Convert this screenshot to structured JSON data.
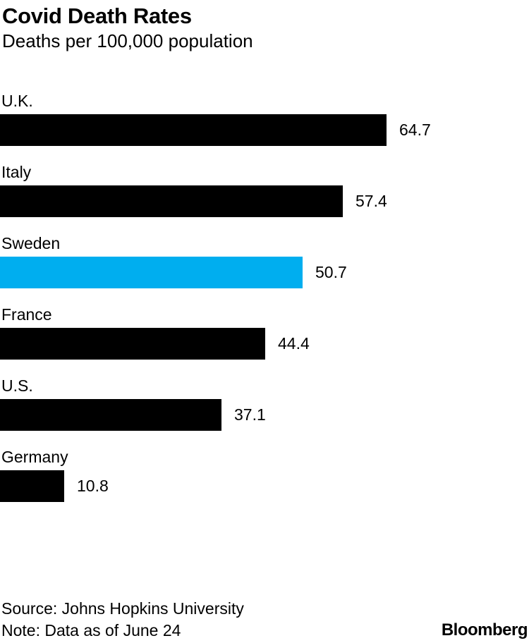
{
  "header": {
    "title": "Covid Death Rates",
    "subtitle": "Deaths per 100,000 population"
  },
  "chart_data": {
    "type": "bar",
    "orientation": "horizontal",
    "title": "Covid Death Rates",
    "subtitle": "Deaths per 100,000 population",
    "categories": [
      "U.K.",
      "Italy",
      "Sweden",
      "France",
      "U.S.",
      "Germany"
    ],
    "values": [
      64.7,
      57.4,
      50.7,
      44.4,
      37.1,
      10.8
    ],
    "value_labels": [
      "64.7",
      "57.4",
      "50.7",
      "44.4",
      "37.1",
      "10.8"
    ],
    "xlim": [
      0,
      70
    ],
    "grid": false,
    "legend": false,
    "bar_color": "#000000",
    "highlight_category": "Sweden",
    "highlight_color": "#00aeef",
    "value_label_color": "#000000"
  },
  "footer": {
    "source": "Source: Johns Hopkins University",
    "note": "Note: Data as of June 24",
    "brand": "Bloomberg"
  }
}
